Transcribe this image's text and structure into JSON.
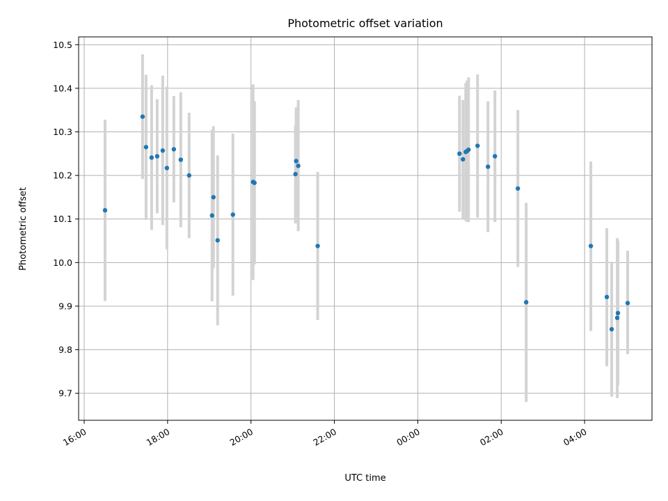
{
  "chart_data": {
    "type": "scatter",
    "title": "Photometric offset variation",
    "xlabel": "UTC time",
    "ylabel": "Photometric offset",
    "x_unit": "UTC time",
    "xlim": [
      "15:52",
      "29:37"
    ],
    "ylim": [
      9.638,
      10.518
    ],
    "grid": true,
    "x_ticks": [
      {
        "value": "16:00",
        "label": "16:00"
      },
      {
        "value": "18:00",
        "label": "18:00"
      },
      {
        "value": "20:00",
        "label": "20:00"
      },
      {
        "value": "22:00",
        "label": "22:00"
      },
      {
        "value": "24:00",
        "label": "00:00"
      },
      {
        "value": "26:00",
        "label": "02:00"
      },
      {
        "value": "28:00",
        "label": "04:00"
      }
    ],
    "y_ticks": [
      {
        "value": 9.7,
        "label": "9.7"
      },
      {
        "value": 9.8,
        "label": "9.8"
      },
      {
        "value": 9.9,
        "label": "9.9"
      },
      {
        "value": 10.0,
        "label": "10.0"
      },
      {
        "value": 10.1,
        "label": "10.1"
      },
      {
        "value": 10.2,
        "label": "10.2"
      },
      {
        "value": 10.3,
        "label": "10.3"
      },
      {
        "value": 10.4,
        "label": "10.4"
      },
      {
        "value": 10.5,
        "label": "10.5"
      }
    ],
    "colors": {
      "point": "#1f77b4",
      "errorbar": "#d3d3d3",
      "grid": "#b0b0b0"
    },
    "points": [
      {
        "x": "16:30",
        "y": 10.12,
        "err_low": 9.912,
        "err_high": 10.328
      },
      {
        "x": "17:24",
        "y": 10.335,
        "err_low": 10.192,
        "err_high": 10.478
      },
      {
        "x": "17:29",
        "y": 10.265,
        "err_low": 10.098,
        "err_high": 10.431
      },
      {
        "x": "17:37",
        "y": 10.241,
        "err_low": 10.075,
        "err_high": 10.407
      },
      {
        "x": "17:45",
        "y": 10.244,
        "err_low": 10.113,
        "err_high": 10.375
      },
      {
        "x": "17:53",
        "y": 10.257,
        "err_low": 10.086,
        "err_high": 10.429
      },
      {
        "x": "17:59",
        "y": 10.217,
        "err_low": 10.03,
        "err_high": 10.404
      },
      {
        "x": "18:09",
        "y": 10.26,
        "err_low": 10.138,
        "err_high": 10.382
      },
      {
        "x": "18:19",
        "y": 10.236,
        "err_low": 10.081,
        "err_high": 10.391
      },
      {
        "x": "18:31",
        "y": 10.2,
        "err_low": 10.056,
        "err_high": 10.344
      },
      {
        "x": "19:04",
        "y": 10.108,
        "err_low": 9.911,
        "err_high": 10.305
      },
      {
        "x": "19:06",
        "y": 10.15,
        "err_low": 9.987,
        "err_high": 10.313
      },
      {
        "x": "19:12",
        "y": 10.051,
        "err_low": 9.856,
        "err_high": 10.246
      },
      {
        "x": "19:34",
        "y": 10.11,
        "err_low": 9.924,
        "err_high": 10.296
      },
      {
        "x": "20:03",
        "y": 10.185,
        "err_low": 9.96,
        "err_high": 10.409
      },
      {
        "x": "20:05",
        "y": 10.183,
        "err_low": 9.996,
        "err_high": 10.37
      },
      {
        "x": "21:04",
        "y": 10.203,
        "err_low": 10.09,
        "err_high": 10.315
      },
      {
        "x": "21:05",
        "y": 10.233,
        "err_low": 10.111,
        "err_high": 10.356
      },
      {
        "x": "21:08",
        "y": 10.222,
        "err_low": 10.072,
        "err_high": 10.373
      },
      {
        "x": "21:36",
        "y": 10.038,
        "err_low": 9.868,
        "err_high": 10.208
      },
      {
        "x": "25:00",
        "y": 10.25,
        "err_low": 10.117,
        "err_high": 10.383
      },
      {
        "x": "25:05",
        "y": 10.237,
        "err_low": 10.101,
        "err_high": 10.373
      },
      {
        "x": "25:09",
        "y": 10.254,
        "err_low": 10.096,
        "err_high": 10.412
      },
      {
        "x": "25:11",
        "y": 10.256,
        "err_low": 10.093,
        "err_high": 10.418
      },
      {
        "x": "25:13",
        "y": 10.259,
        "err_low": 10.093,
        "err_high": 10.425
      },
      {
        "x": "25:26",
        "y": 10.268,
        "err_low": 10.103,
        "err_high": 10.432
      },
      {
        "x": "25:41",
        "y": 10.22,
        "err_low": 10.07,
        "err_high": 10.37
      },
      {
        "x": "25:51",
        "y": 10.244,
        "err_low": 10.093,
        "err_high": 10.395
      },
      {
        "x": "26:24",
        "y": 10.17,
        "err_low": 9.99,
        "err_high": 10.35
      },
      {
        "x": "26:36",
        "y": 9.909,
        "err_low": 9.68,
        "err_high": 10.137
      },
      {
        "x": "28:09",
        "y": 10.038,
        "err_low": 9.843,
        "err_high": 10.232
      },
      {
        "x": "28:32",
        "y": 9.921,
        "err_low": 9.762,
        "err_high": 10.079
      },
      {
        "x": "28:39",
        "y": 9.847,
        "err_low": 9.692,
        "err_high": 10.002
      },
      {
        "x": "28:47",
        "y": 9.873,
        "err_low": 9.689,
        "err_high": 10.056
      },
      {
        "x": "28:48",
        "y": 9.884,
        "err_low": 9.718,
        "err_high": 10.05
      },
      {
        "x": "29:02",
        "y": 9.907,
        "err_low": 9.79,
        "err_high": 10.027
      }
    ]
  }
}
